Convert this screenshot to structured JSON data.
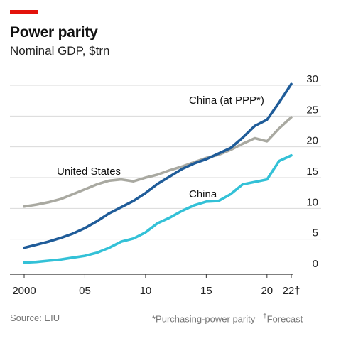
{
  "title": "Power parity",
  "subtitle": "Nominal GDP, $trn",
  "source": "Source: EIU",
  "footnote1": "*Purchasing-power parity",
  "footnote2_mark": "†",
  "footnote2": "Forecast",
  "colors": {
    "accent": "#e3120b",
    "china_ppp": "#1f5c99",
    "united_states": "#a9a9a1",
    "china": "#33c1d7",
    "grid": "#d9d9d9",
    "baseline": "#333333"
  },
  "chart_data": {
    "type": "line",
    "title": "Power parity",
    "subtitle": "Nominal GDP, $trn",
    "x": [
      2000,
      2001,
      2002,
      2003,
      2004,
      2005,
      2006,
      2007,
      2008,
      2009,
      2010,
      2011,
      2012,
      2013,
      2014,
      2015,
      2016,
      2017,
      2018,
      2019,
      2020,
      2021,
      2022
    ],
    "xticks": [
      2000,
      2005,
      2010,
      2015,
      2020,
      2022
    ],
    "xticklabels": [
      "2000",
      "05",
      "10",
      "15",
      "20",
      "22†"
    ],
    "xlim": [
      2000,
      2022
    ],
    "ylim": [
      0,
      30
    ],
    "yticks": [
      0,
      5,
      10,
      15,
      20,
      25,
      30
    ],
    "yaxis_side": "right",
    "grid": true,
    "series": [
      {
        "name": "China (at PPP*)",
        "key": "china_ppp",
        "values": [
          3.6,
          4.1,
          4.6,
          5.2,
          5.9,
          6.8,
          7.9,
          9.2,
          10.2,
          11.2,
          12.5,
          14.0,
          15.2,
          16.4,
          17.3,
          18.0,
          18.9,
          19.8,
          21.5,
          23.4,
          24.4,
          27.2,
          30.2
        ]
      },
      {
        "name": "United States",
        "key": "united_states",
        "values": [
          10.3,
          10.6,
          11.0,
          11.5,
          12.3,
          13.1,
          13.9,
          14.5,
          14.7,
          14.4,
          15.0,
          15.5,
          16.2,
          16.8,
          17.5,
          18.2,
          18.7,
          19.5,
          20.5,
          21.4,
          20.9,
          23.0,
          24.8
        ]
      },
      {
        "name": "China",
        "key": "china",
        "values": [
          1.2,
          1.3,
          1.5,
          1.7,
          2.0,
          2.3,
          2.8,
          3.6,
          4.6,
          5.1,
          6.1,
          7.6,
          8.5,
          9.6,
          10.5,
          11.1,
          11.2,
          12.3,
          13.9,
          14.3,
          14.7,
          17.7,
          18.6
        ]
      }
    ]
  }
}
